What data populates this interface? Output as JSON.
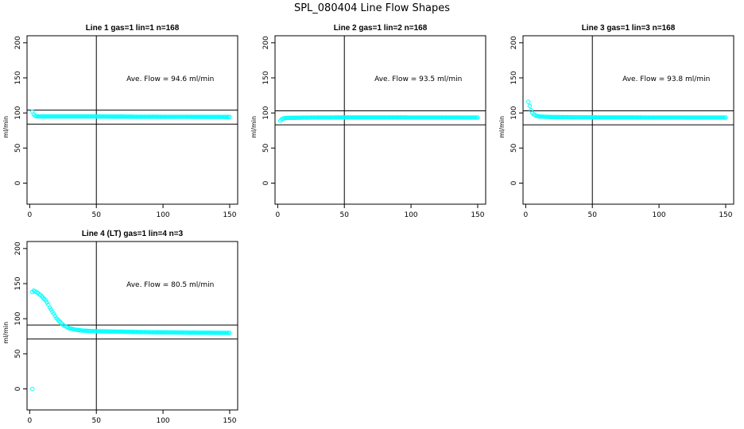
{
  "title": "SPL_080404  Line Flow Shapes",
  "chart_data": [
    {
      "type": "scatter",
      "title": "Line 1 gas=1 lin=1 n=168",
      "ylabel": "ml/min",
      "xlim": [
        -2,
        156
      ],
      "ylim": [
        -30,
        210
      ],
      "xticks": [
        "0",
        "50",
        "100",
        "150"
      ],
      "yticks": [
        "0",
        "50",
        "100",
        "150",
        "200"
      ],
      "hlines": [
        104,
        84
      ],
      "vline": 50,
      "annotation": "Ave. Flow =  94.6  ml/min",
      "series": [
        {
          "color": "#00ffff",
          "x": [
            2,
            3,
            4,
            5,
            6,
            8,
            10,
            15,
            20,
            30,
            40,
            50,
            60,
            70,
            80,
            90,
            100,
            110,
            120,
            130,
            140,
            150
          ],
          "y": [
            102,
            98,
            96,
            95.5,
            95,
            95,
            95,
            95,
            95,
            95,
            95,
            95,
            94.8,
            94.8,
            94.6,
            94.6,
            94.5,
            94.5,
            94.5,
            94.4,
            94.4,
            94.3
          ]
        }
      ]
    },
    {
      "type": "scatter",
      "title": "Line 2 gas=1 lin=2 n=168",
      "ylabel": "ml/min",
      "xlim": [
        -2,
        156
      ],
      "ylim": [
        -30,
        210
      ],
      "xticks": [
        "0",
        "50",
        "100",
        "150"
      ],
      "yticks": [
        "0",
        "50",
        "100",
        "150",
        "200"
      ],
      "hlines": [
        103,
        83
      ],
      "vline": 50,
      "annotation": "Ave. Flow =  93.5  ml/min",
      "series": [
        {
          "color": "#00ffff",
          "x": [
            2,
            3,
            4,
            5,
            6,
            8,
            10,
            15,
            20,
            30,
            40,
            50,
            60,
            70,
            80,
            90,
            100,
            110,
            120,
            130,
            140,
            150
          ],
          "y": [
            89,
            91,
            92,
            92.5,
            92.8,
            93,
            93,
            93.2,
            93.3,
            93.5,
            93.5,
            93.6,
            93.6,
            93.6,
            93.6,
            93.6,
            93.5,
            93.5,
            93.5,
            93.5,
            93.4,
            93.4
          ]
        }
      ]
    },
    {
      "type": "scatter",
      "title": "Line 3 gas=1 lin=3 n=168",
      "ylabel": "ml/min",
      "xlim": [
        -2,
        156
      ],
      "ylim": [
        -30,
        210
      ],
      "xticks": [
        "0",
        "50",
        "100",
        "150"
      ],
      "yticks": [
        "0",
        "50",
        "100",
        "150",
        "200"
      ],
      "hlines": [
        103,
        83
      ],
      "vline": 50,
      "annotation": "Ave. Flow =  93.8  ml/min",
      "series": [
        {
          "color": "#00ffff",
          "x": [
            2,
            3,
            4,
            5,
            6,
            8,
            10,
            15,
            20,
            30,
            40,
            50,
            60,
            70,
            80,
            90,
            100,
            110,
            120,
            130,
            140,
            150
          ],
          "y": [
            116,
            110,
            104,
            100,
            98,
            96,
            95,
            94.5,
            94.2,
            94,
            93.8,
            93.7,
            93.6,
            93.6,
            93.6,
            93.5,
            93.5,
            93.5,
            93.4,
            93.4,
            93.4,
            93.4
          ]
        }
      ]
    },
    {
      "type": "scatter",
      "title": "Line 4 (LT) gas=1 lin=4 n=3",
      "ylabel": "ml/min",
      "xlim": [
        -2,
        156
      ],
      "ylim": [
        -30,
        210
      ],
      "xticks": [
        "0",
        "50",
        "100",
        "150"
      ],
      "yticks": [
        "0",
        "50",
        "100",
        "150",
        "200"
      ],
      "hlines": [
        91,
        71
      ],
      "vline": 50,
      "annotation": "Ave. Flow =  80.5  ml/min",
      "series": [
        {
          "color": "#00ffff",
          "x": [
            2,
            3,
            4,
            5,
            6,
            7,
            8,
            9,
            10,
            11,
            12,
            13,
            14,
            15,
            16,
            17,
            18,
            19,
            20,
            21,
            22,
            23,
            24,
            25,
            26,
            27,
            28,
            29,
            30,
            31,
            32,
            33,
            34,
            35,
            36,
            38,
            40,
            42,
            45,
            50,
            55,
            60,
            65,
            70,
            75,
            80,
            85,
            90,
            95,
            100,
            105,
            110,
            115,
            120,
            125,
            130,
            135,
            140,
            145,
            150,
            2
          ],
          "y": [
            138,
            140,
            139,
            138,
            137,
            135,
            134,
            132,
            130,
            128,
            126,
            123,
            120,
            116,
            113,
            110,
            107,
            104,
            101,
            99,
            97,
            95,
            93,
            91,
            90,
            89,
            88,
            87,
            86,
            86,
            85.5,
            85,
            84.5,
            84.2,
            84,
            83.5,
            83,
            83,
            82.5,
            82.2,
            82,
            81.8,
            81.6,
            81.5,
            81.3,
            81.1,
            81,
            80.8,
            80.7,
            80.6,
            80.5,
            80.4,
            80.3,
            80.2,
            80.1,
            80,
            80,
            79.9,
            79.8,
            79.8,
            0
          ]
        }
      ]
    }
  ]
}
